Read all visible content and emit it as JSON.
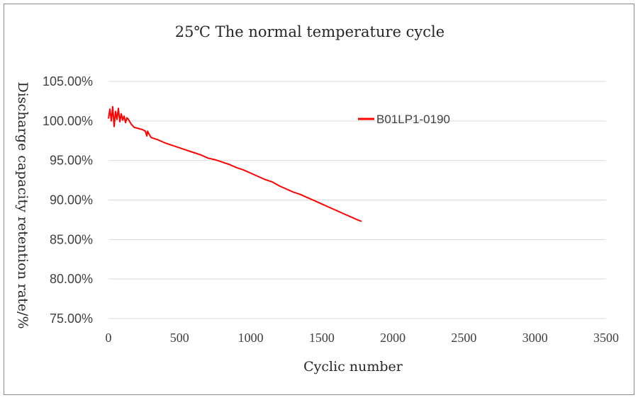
{
  "chart_data": {
    "type": "line",
    "title": "25℃ The normal temperature cycle",
    "xlabel": "Cyclic number",
    "ylabel": "Discharge capacity retention rate/%",
    "xlim": [
      0,
      3500
    ],
    "ylim": [
      75,
      105
    ],
    "x_ticks": [
      "0",
      "500",
      "1000",
      "1500",
      "2000",
      "2500",
      "3000",
      "3500"
    ],
    "y_ticks": [
      "75.00%",
      "80.00%",
      "85.00%",
      "90.00%",
      "95.00%",
      "100.00%",
      "105.00%"
    ],
    "grid": true,
    "legend_position": "top-right",
    "series": [
      {
        "name": "B01LP1-0190",
        "color": "#ff0000",
        "x": [
          0,
          10,
          20,
          30,
          40,
          50,
          60,
          70,
          80,
          90,
          100,
          110,
          120,
          130,
          140,
          150,
          160,
          170,
          180,
          200,
          220,
          240,
          260,
          270,
          275,
          280,
          290,
          300,
          350,
          400,
          450,
          500,
          550,
          600,
          650,
          700,
          750,
          800,
          850,
          900,
          950,
          1000,
          1050,
          1100,
          1150,
          1200,
          1250,
          1300,
          1350,
          1400,
          1450,
          1500,
          1550,
          1600,
          1650,
          1700,
          1750,
          1780
        ],
        "y": [
          100.3,
          101.5,
          100.0,
          101.8,
          99.3,
          101.2,
          100.2,
          101.6,
          99.9,
          100.9,
          100.1,
          100.6,
          99.8,
          100.4,
          100.2,
          99.9,
          99.6,
          99.4,
          99.2,
          99.1,
          99.0,
          98.9,
          98.7,
          98.1,
          98.7,
          98.5,
          98.2,
          97.9,
          97.6,
          97.2,
          96.9,
          96.6,
          96.3,
          96.0,
          95.7,
          95.3,
          95.1,
          94.8,
          94.5,
          94.1,
          93.8,
          93.4,
          93.0,
          92.6,
          92.3,
          91.8,
          91.4,
          91.0,
          90.7,
          90.3,
          89.9,
          89.5,
          89.1,
          88.7,
          88.3,
          87.9,
          87.5,
          87.3
        ]
      }
    ]
  }
}
